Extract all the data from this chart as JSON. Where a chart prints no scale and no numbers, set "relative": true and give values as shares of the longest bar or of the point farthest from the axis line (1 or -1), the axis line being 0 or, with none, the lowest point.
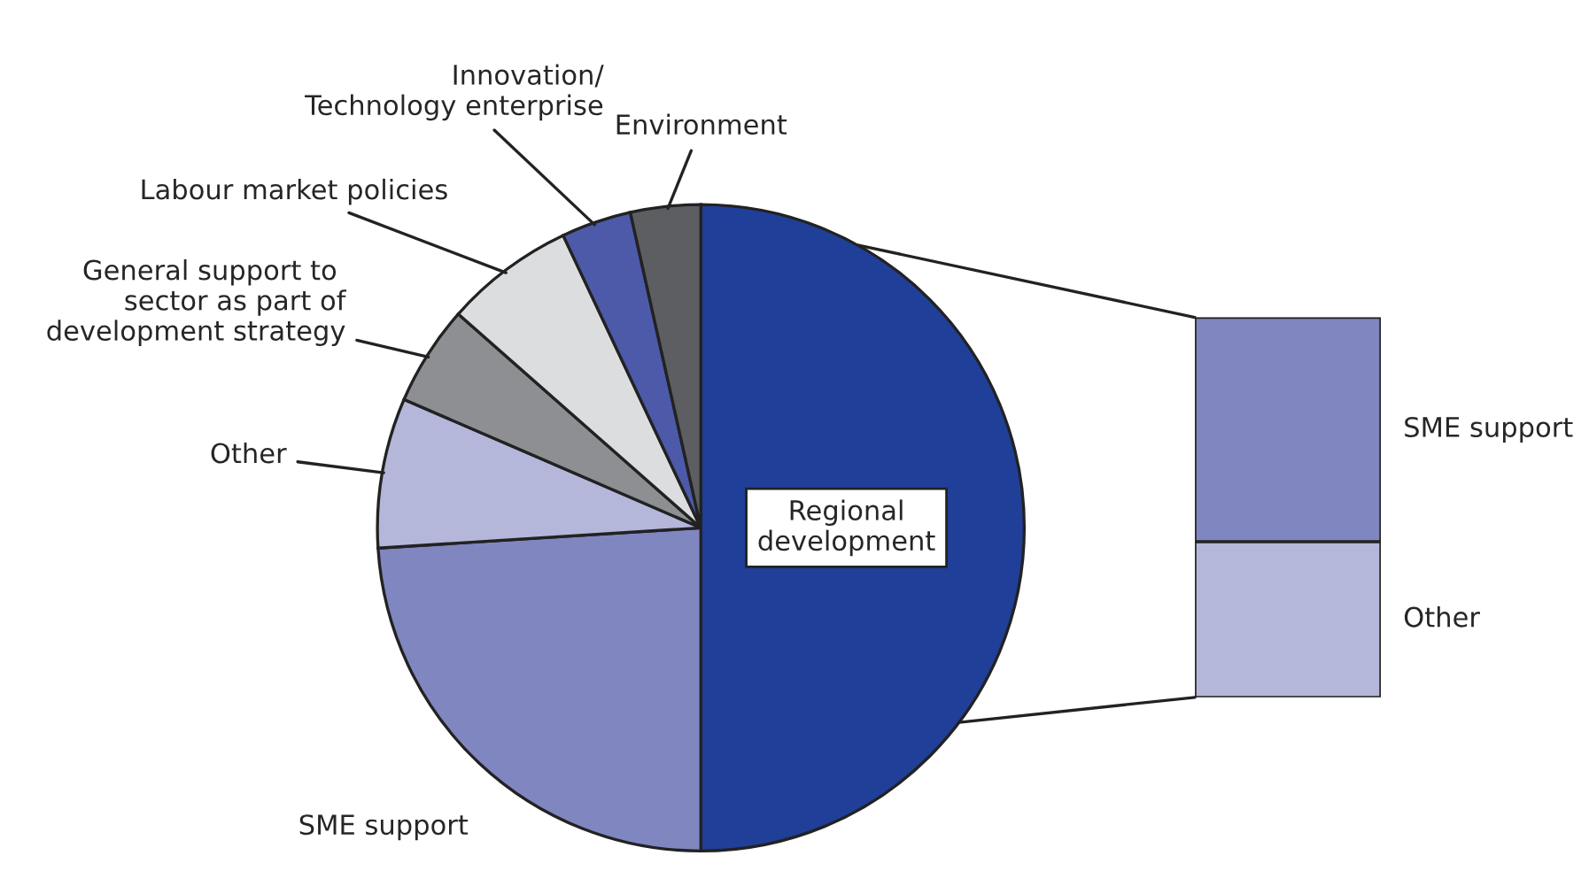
{
  "chart_data": [
    {
      "type": "pie",
      "categories": [
        "Regional development",
        "SME support",
        "Other",
        "General support to sector as part of development strategy",
        "Labour market policies",
        "Innovation/ Technology enterprise",
        "Environment"
      ],
      "values": [
        50,
        24,
        7.5,
        5,
        6.5,
        3.5,
        3.5
      ],
      "colors": [
        "#1f3f99",
        "#8086c0",
        "#b4b6da",
        "#8e8f93",
        "#dcdddf",
        "#4d5aaa",
        "#5d5e62"
      ]
    },
    {
      "type": "bar",
      "stacked": true,
      "relative": true,
      "categories": [
        null
      ],
      "series": [
        {
          "name": "Other",
          "color": "#b4b6da",
          "values": [
            0.41
          ]
        },
        {
          "name": "SME support",
          "color": "#8086c0",
          "values": [
            0.59
          ]
        }
      ]
    }
  ]
}
